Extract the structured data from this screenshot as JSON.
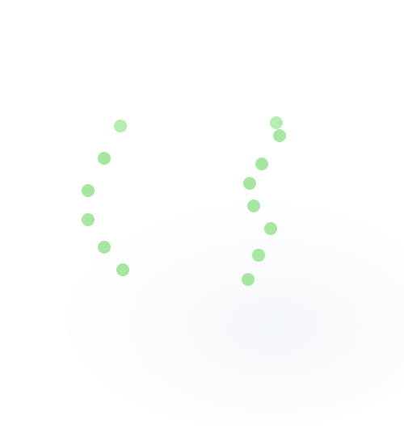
{
  "canvas": {
    "background": "#ffffff",
    "dot_color": "#a6e6a1",
    "dot_color_faint": "#b6ecb2",
    "glow_color": "#ecf1f8"
  },
  "groups": [
    {
      "name": "left-dot-bracket",
      "dot_count": 6
    },
    {
      "name": "right-dot-brace",
      "dot_count": 8
    }
  ]
}
